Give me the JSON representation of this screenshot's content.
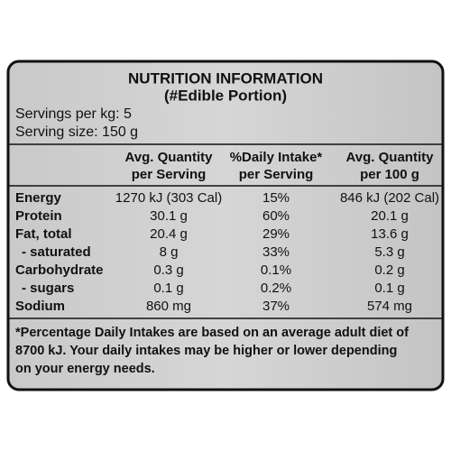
{
  "header": {
    "title": "NUTRITION INFORMATION",
    "subtitle": "(#Edible Portion)",
    "servings_per_kg": "Servings per kg: 5",
    "serving_size": "Serving size: 150 g"
  },
  "table": {
    "columns": [
      [
        "Avg. Quantity",
        "per Serving"
      ],
      [
        "%Daily Intake*",
        "per Serving"
      ],
      [
        "Avg. Quantity",
        "per 100 g"
      ]
    ],
    "rows": [
      [
        "Energy",
        "1270 kJ (303 Cal)",
        "15%",
        "846 kJ (202 Cal)"
      ],
      [
        "Protein",
        "30.1 g",
        "60%",
        "20.1 g"
      ],
      [
        "Fat, total",
        "20.4 g",
        "29%",
        "13.6 g"
      ],
      [
        "- saturated",
        "8 g",
        "33%",
        "5.3 g"
      ],
      [
        "Carbohydrate",
        "0.3 g",
        "0.1%",
        "0.2 g"
      ],
      [
        "- sugars",
        "0.1 g",
        "0.2%",
        "0.1 g"
      ],
      [
        "Sodium",
        "860 mg",
        "37%",
        "574 mg"
      ]
    ]
  },
  "footnote": [
    "*Percentage Daily Intakes are based on an average adult diet of",
    "8700 kJ. Your daily intakes may be higher or lower depending",
    "on your energy needs."
  ]
}
